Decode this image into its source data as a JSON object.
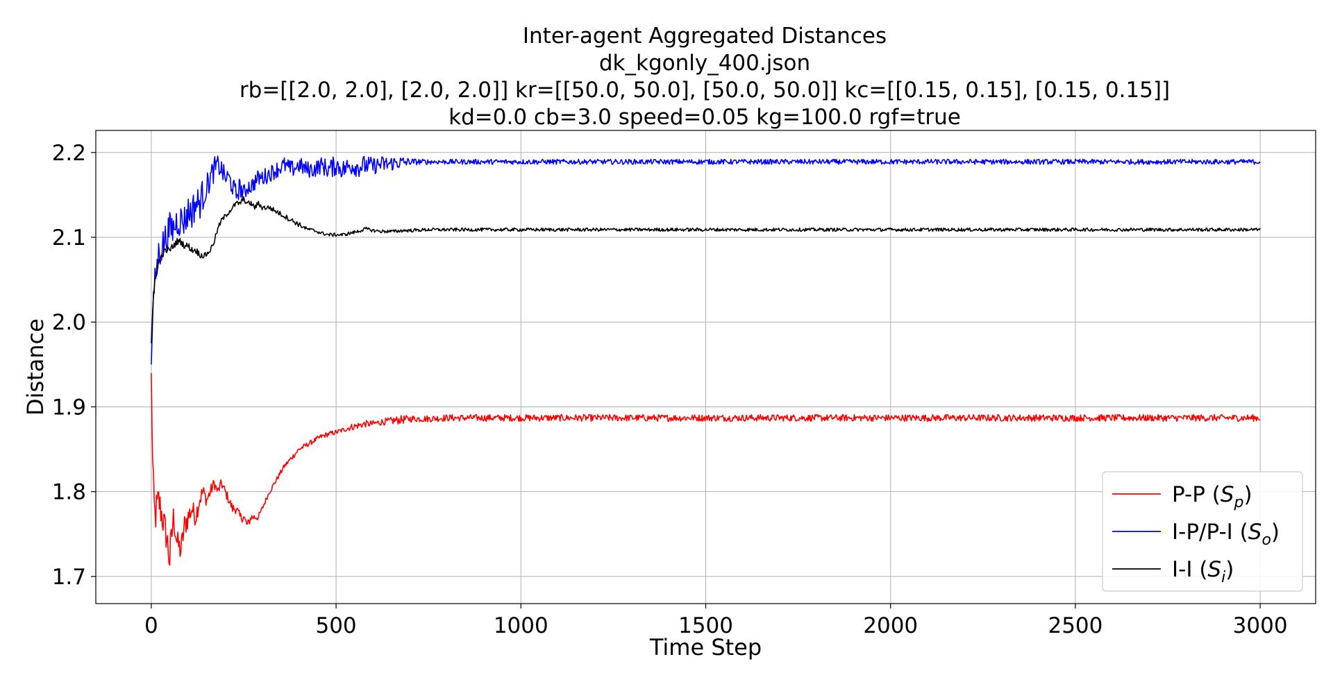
{
  "chart_data": {
    "type": "line",
    "title_lines": [
      "Inter-agent Aggregated Distances",
      "dk_kgonly_400.json",
      "rb=[[2.0, 2.0], [2.0, 2.0]] kr=[[50.0, 50.0], [50.0, 50.0]] kc=[[0.15, 0.15], [0.15, 0.15]]",
      "kd=0.0 cb=3.0 speed=0.05 kg=100.0 rgf=true"
    ],
    "xlabel": "Time Step",
    "ylabel": "Distance",
    "xlim": [
      -150,
      3150
    ],
    "ylim": [
      1.668,
      2.226
    ],
    "xticks": [
      0,
      500,
      1000,
      1500,
      2000,
      2500,
      3000
    ],
    "yticks": [
      1.7,
      1.8,
      1.9,
      2.0,
      2.1,
      2.2
    ],
    "xtick_labels": [
      "0",
      "500",
      "1000",
      "1500",
      "2000",
      "2500",
      "3000"
    ],
    "ytick_labels": [
      "1.7",
      "1.8",
      "1.9",
      "2.0",
      "2.1",
      "2.2"
    ],
    "grid": true,
    "legend_position": "lower-right",
    "series": [
      {
        "label_main": "P-P (",
        "label_sym": "S",
        "label_sub": "p",
        "label_end": ")",
        "color": "#ff0000",
        "x": [
          0,
          5,
          10,
          20,
          30,
          40,
          50,
          60,
          70,
          80,
          90,
          100,
          110,
          120,
          130,
          140,
          150,
          160,
          170,
          180,
          190,
          200,
          210,
          220,
          230,
          240,
          250,
          260,
          270,
          280,
          290,
          300,
          320,
          340,
          360,
          380,
          400,
          420,
          440,
          460,
          480,
          500,
          520,
          540,
          560,
          580,
          600,
          620,
          640,
          660,
          680,
          700,
          750,
          800,
          900,
          1000,
          1500,
          2000,
          2500,
          3000
        ],
        "y": [
          1.94,
          1.8,
          1.77,
          1.79,
          1.77,
          1.75,
          1.72,
          1.77,
          1.74,
          1.73,
          1.76,
          1.77,
          1.78,
          1.77,
          1.79,
          1.8,
          1.79,
          1.8,
          1.81,
          1.8,
          1.81,
          1.8,
          1.79,
          1.78,
          1.78,
          1.77,
          1.77,
          1.76,
          1.77,
          1.77,
          1.77,
          1.78,
          1.8,
          1.815,
          1.83,
          1.84,
          1.85,
          1.855,
          1.86,
          1.865,
          1.868,
          1.87,
          1.873,
          1.876,
          1.878,
          1.88,
          1.88,
          1.882,
          1.883,
          1.884,
          1.885,
          1.886,
          1.886,
          1.887,
          1.887,
          1.887,
          1.887,
          1.887,
          1.887,
          1.887
        ],
        "noise": [
          0,
          0.03,
          0.025,
          0.02,
          0.02,
          0.02,
          0.025,
          0.015,
          0.015,
          0.015,
          0.015,
          0.015,
          0.012,
          0.012,
          0.012,
          0.01,
          0.008,
          0.008,
          0.006,
          0.006,
          0.006,
          0.006,
          0.006,
          0.006,
          0.006,
          0.006,
          0.006,
          0.006,
          0.005,
          0.005,
          0.004,
          0.003,
          0.003,
          0.003,
          0.003,
          0.003,
          0.003,
          0.003,
          0.003,
          0.003,
          0.003,
          0.003,
          0.003,
          0.004,
          0.004,
          0.004,
          0.004,
          0.004,
          0.004,
          0.005,
          0.005,
          0.004,
          0.004,
          0.004,
          0.004,
          0.004,
          0.004,
          0.004,
          0.004,
          0.004
        ]
      },
      {
        "label_main": "I-P/P-I (",
        "label_sym": "S",
        "label_sub": "o",
        "label_end": ")",
        "color": "#0000ff",
        "x": [
          0,
          5,
          10,
          20,
          30,
          40,
          50,
          60,
          70,
          80,
          90,
          100,
          110,
          120,
          130,
          140,
          150,
          160,
          170,
          180,
          190,
          200,
          210,
          220,
          230,
          240,
          250,
          260,
          270,
          280,
          290,
          300,
          320,
          340,
          360,
          380,
          400,
          420,
          440,
          460,
          480,
          500,
          520,
          540,
          560,
          580,
          600,
          620,
          640,
          660,
          680,
          700,
          750,
          800,
          900,
          1000,
          1500,
          2000,
          2500,
          3000
        ],
        "y": [
          1.95,
          2.02,
          2.05,
          2.08,
          2.09,
          2.1,
          2.11,
          2.11,
          2.12,
          2.12,
          2.12,
          2.13,
          2.13,
          2.14,
          2.14,
          2.15,
          2.16,
          2.17,
          2.18,
          2.185,
          2.18,
          2.17,
          2.17,
          2.16,
          2.15,
          2.16,
          2.15,
          2.16,
          2.16,
          2.165,
          2.17,
          2.17,
          2.175,
          2.18,
          2.185,
          2.18,
          2.185,
          2.18,
          2.18,
          2.185,
          2.18,
          2.185,
          2.18,
          2.185,
          2.183,
          2.185,
          2.184,
          2.186,
          2.186,
          2.188,
          2.188,
          2.189,
          2.189,
          2.189,
          2.189,
          2.189,
          2.189,
          2.189,
          2.189,
          2.189
        ],
        "noise": [
          0,
          0.01,
          0.015,
          0.02,
          0.02,
          0.02,
          0.02,
          0.02,
          0.02,
          0.02,
          0.02,
          0.02,
          0.02,
          0.02,
          0.02,
          0.02,
          0.015,
          0.015,
          0.015,
          0.012,
          0.012,
          0.012,
          0.012,
          0.012,
          0.012,
          0.012,
          0.012,
          0.01,
          0.01,
          0.01,
          0.01,
          0.01,
          0.01,
          0.01,
          0.01,
          0.01,
          0.01,
          0.01,
          0.01,
          0.01,
          0.012,
          0.012,
          0.012,
          0.012,
          0.012,
          0.012,
          0.01,
          0.01,
          0.01,
          0.008,
          0.008,
          0.004,
          0.003,
          0.003,
          0.003,
          0.003,
          0.003,
          0.003,
          0.003,
          0.003
        ]
      },
      {
        "label_main": "I-I (",
        "label_sym": "S",
        "label_sub": "i",
        "label_end": ")",
        "color": "#000000",
        "x": [
          0,
          5,
          10,
          20,
          30,
          40,
          50,
          60,
          70,
          80,
          90,
          100,
          110,
          120,
          130,
          140,
          150,
          160,
          170,
          180,
          190,
          200,
          210,
          220,
          230,
          240,
          250,
          260,
          270,
          280,
          290,
          300,
          320,
          340,
          360,
          380,
          400,
          420,
          440,
          460,
          480,
          500,
          520,
          540,
          560,
          580,
          600,
          620,
          640,
          660,
          680,
          700,
          750,
          800,
          900,
          1000,
          1500,
          2000,
          2500,
          3000
        ],
        "y": [
          1.975,
          2.02,
          2.05,
          2.07,
          2.08,
          2.085,
          2.085,
          2.09,
          2.095,
          2.095,
          2.09,
          2.09,
          2.085,
          2.085,
          2.08,
          2.078,
          2.08,
          2.085,
          2.095,
          2.11,
          2.12,
          2.125,
          2.13,
          2.135,
          2.14,
          2.14,
          2.145,
          2.14,
          2.14,
          2.135,
          2.14,
          2.135,
          2.135,
          2.13,
          2.125,
          2.12,
          2.115,
          2.11,
          2.108,
          2.105,
          2.103,
          2.103,
          2.103,
          2.105,
          2.107,
          2.11,
          2.108,
          2.107,
          2.107,
          2.107,
          2.108,
          2.108,
          2.109,
          2.109,
          2.109,
          2.109,
          2.109,
          2.109,
          2.109,
          2.109
        ],
        "noise": [
          0,
          0.006,
          0.005,
          0.004,
          0.004,
          0.004,
          0.004,
          0.004,
          0.004,
          0.004,
          0.004,
          0.004,
          0.004,
          0.004,
          0.004,
          0.003,
          0.003,
          0.003,
          0.003,
          0.003,
          0.003,
          0.003,
          0.003,
          0.003,
          0.003,
          0.003,
          0.003,
          0.003,
          0.003,
          0.003,
          0.003,
          0.003,
          0.003,
          0.003,
          0.003,
          0.003,
          0.003,
          0.002,
          0.002,
          0.002,
          0.002,
          0.002,
          0.002,
          0.002,
          0.002,
          0.002,
          0.002,
          0.002,
          0.002,
          0.002,
          0.002,
          0.002,
          0.002,
          0.002,
          0.002,
          0.002,
          0.002,
          0.002,
          0.002,
          0.002
        ]
      }
    ]
  }
}
